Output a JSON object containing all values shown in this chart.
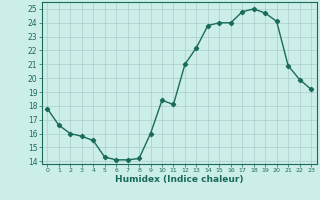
{
  "x": [
    0,
    1,
    2,
    3,
    4,
    5,
    6,
    7,
    8,
    9,
    10,
    11,
    12,
    13,
    14,
    15,
    16,
    17,
    18,
    19,
    20,
    21,
    22,
    23
  ],
  "y": [
    17.8,
    16.6,
    16.0,
    15.8,
    15.5,
    14.3,
    14.1,
    14.1,
    14.2,
    16.0,
    18.4,
    18.1,
    21.0,
    22.2,
    23.8,
    24.0,
    24.0,
    24.8,
    25.0,
    24.7,
    24.1,
    20.9,
    19.9,
    19.2
  ],
  "xlabel": "Humidex (Indice chaleur)",
  "xlim": [
    -0.5,
    23.5
  ],
  "ylim": [
    13.8,
    25.5
  ],
  "yticks": [
    14,
    15,
    16,
    17,
    18,
    19,
    20,
    21,
    22,
    23,
    24,
    25
  ],
  "xticks": [
    0,
    1,
    2,
    3,
    4,
    5,
    6,
    7,
    8,
    9,
    10,
    11,
    12,
    13,
    14,
    15,
    16,
    17,
    18,
    19,
    20,
    21,
    22,
    23
  ],
  "line_color": "#1a6b5a",
  "bg_color": "#cceee8",
  "grid_color": "#aacccc",
  "marker": "D",
  "marker_size": 2.2,
  "line_width": 1.0
}
